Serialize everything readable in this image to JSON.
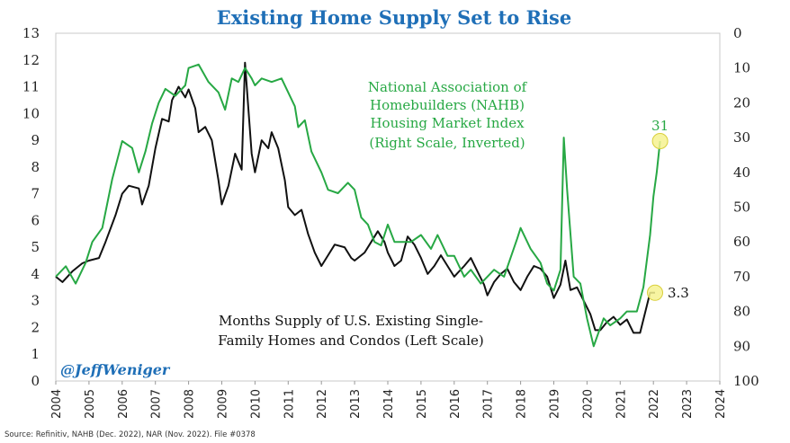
{
  "chart_data": {
    "type": "line",
    "title": "Existing Home Supply Set to Rise",
    "x_ticks": [
      "2004",
      "2005",
      "2006",
      "2007",
      "2008",
      "2009",
      "2010",
      "2011",
      "2012",
      "2013",
      "2014",
      "2015",
      "2016",
      "2017",
      "2018",
      "2019",
      "2020",
      "2021",
      "2022",
      "2023",
      "2024"
    ],
    "y_left": {
      "min": 0,
      "max": 13,
      "ticks": [
        "0",
        "1",
        "2",
        "3",
        "4",
        "5",
        "6",
        "7",
        "8",
        "9",
        "10",
        "11",
        "12",
        "13"
      ]
    },
    "y_right": {
      "min": 0,
      "max": 100,
      "inverted": true,
      "ticks": [
        "0",
        "10",
        "20",
        "30",
        "40",
        "50",
        "60",
        "70",
        "80",
        "90",
        "100"
      ]
    },
    "grid": false,
    "series": [
      {
        "name": "Months Supply of U.S. Existing Single-Family Homes and Condos (Left Scale)",
        "color": "#111111",
        "axis": "left",
        "end_label": "3.3",
        "points": [
          [
            2004.0,
            3.9
          ],
          [
            2004.2,
            3.7
          ],
          [
            2004.5,
            4.1
          ],
          [
            2004.8,
            4.4
          ],
          [
            2005.0,
            4.5
          ],
          [
            2005.3,
            4.6
          ],
          [
            2005.5,
            5.2
          ],
          [
            2005.8,
            6.2
          ],
          [
            2006.0,
            7.0
          ],
          [
            2006.2,
            7.3
          ],
          [
            2006.5,
            7.2
          ],
          [
            2006.6,
            6.6
          ],
          [
            2006.8,
            7.3
          ],
          [
            2007.0,
            8.7
          ],
          [
            2007.2,
            9.8
          ],
          [
            2007.4,
            9.7
          ],
          [
            2007.5,
            10.5
          ],
          [
            2007.7,
            11.0
          ],
          [
            2007.9,
            10.6
          ],
          [
            2008.0,
            10.9
          ],
          [
            2008.2,
            10.2
          ],
          [
            2008.3,
            9.3
          ],
          [
            2008.5,
            9.5
          ],
          [
            2008.7,
            9.0
          ],
          [
            2008.9,
            7.5
          ],
          [
            2009.0,
            6.6
          ],
          [
            2009.2,
            7.3
          ],
          [
            2009.4,
            8.5
          ],
          [
            2009.6,
            7.9
          ],
          [
            2009.7,
            11.9
          ],
          [
            2009.8,
            10.2
          ],
          [
            2009.9,
            8.5
          ],
          [
            2010.0,
            7.8
          ],
          [
            2010.2,
            9.0
          ],
          [
            2010.4,
            8.7
          ],
          [
            2010.5,
            9.3
          ],
          [
            2010.7,
            8.7
          ],
          [
            2010.9,
            7.5
          ],
          [
            2011.0,
            6.5
          ],
          [
            2011.2,
            6.2
          ],
          [
            2011.4,
            6.4
          ],
          [
            2011.6,
            5.5
          ],
          [
            2011.8,
            4.8
          ],
          [
            2012.0,
            4.3
          ],
          [
            2012.2,
            4.7
          ],
          [
            2012.4,
            5.1
          ],
          [
            2012.7,
            5.0
          ],
          [
            2012.9,
            4.6
          ],
          [
            2013.0,
            4.5
          ],
          [
            2013.3,
            4.8
          ],
          [
            2013.5,
            5.2
          ],
          [
            2013.7,
            5.6
          ],
          [
            2013.9,
            5.2
          ],
          [
            2014.0,
            4.8
          ],
          [
            2014.2,
            4.3
          ],
          [
            2014.4,
            4.5
          ],
          [
            2014.6,
            5.4
          ],
          [
            2014.8,
            5.1
          ],
          [
            2015.0,
            4.6
          ],
          [
            2015.2,
            4.0
          ],
          [
            2015.4,
            4.3
          ],
          [
            2015.6,
            4.7
          ],
          [
            2015.8,
            4.3
          ],
          [
            2016.0,
            3.9
          ],
          [
            2016.3,
            4.3
          ],
          [
            2016.5,
            4.6
          ],
          [
            2016.7,
            4.1
          ],
          [
            2016.9,
            3.6
          ],
          [
            2017.0,
            3.2
          ],
          [
            2017.2,
            3.7
          ],
          [
            2017.4,
            4.0
          ],
          [
            2017.6,
            4.2
          ],
          [
            2017.8,
            3.7
          ],
          [
            2018.0,
            3.4
          ],
          [
            2018.2,
            3.9
          ],
          [
            2018.4,
            4.3
          ],
          [
            2018.6,
            4.2
          ],
          [
            2018.8,
            3.9
          ],
          [
            2019.0,
            3.1
          ],
          [
            2019.2,
            3.6
          ],
          [
            2019.35,
            4.5
          ],
          [
            2019.5,
            3.4
          ],
          [
            2019.7,
            3.5
          ],
          [
            2019.9,
            3.0
          ],
          [
            2020.1,
            2.5
          ],
          [
            2020.25,
            1.9
          ],
          [
            2020.4,
            1.9
          ],
          [
            2020.6,
            2.2
          ],
          [
            2020.8,
            2.4
          ],
          [
            2021.0,
            2.1
          ],
          [
            2021.2,
            2.3
          ],
          [
            2021.4,
            1.8
          ],
          [
            2021.6,
            1.8
          ],
          [
            2021.8,
            2.8
          ],
          [
            2021.9,
            3.3
          ],
          [
            2022.05,
            3.3
          ]
        ]
      },
      {
        "name": "National Association of Homebuilders (NAHB) Housing Market Index (Right Scale, Inverted)",
        "color": "#27a844",
        "axis": "right",
        "end_label": "31",
        "points": [
          [
            2004.0,
            70
          ],
          [
            2004.3,
            67
          ],
          [
            2004.6,
            72
          ],
          [
            2004.9,
            66
          ],
          [
            2005.1,
            60
          ],
          [
            2005.4,
            56
          ],
          [
            2005.7,
            42
          ],
          [
            2006.0,
            31
          ],
          [
            2006.3,
            33
          ],
          [
            2006.5,
            40
          ],
          [
            2006.7,
            34
          ],
          [
            2006.9,
            26
          ],
          [
            2007.1,
            20
          ],
          [
            2007.3,
            16
          ],
          [
            2007.6,
            18
          ],
          [
            2007.9,
            15
          ],
          [
            2008.0,
            10
          ],
          [
            2008.3,
            9
          ],
          [
            2008.6,
            14
          ],
          [
            2008.9,
            17
          ],
          [
            2009.1,
            22
          ],
          [
            2009.3,
            13
          ],
          [
            2009.5,
            14
          ],
          [
            2009.7,
            10
          ],
          [
            2009.9,
            13
          ],
          [
            2010.0,
            15
          ],
          [
            2010.2,
            13
          ],
          [
            2010.5,
            14
          ],
          [
            2010.8,
            13
          ],
          [
            2011.0,
            17
          ],
          [
            2011.2,
            21
          ],
          [
            2011.3,
            27
          ],
          [
            2011.5,
            25
          ],
          [
            2011.7,
            34
          ],
          [
            2012.0,
            40
          ],
          [
            2012.2,
            45
          ],
          [
            2012.5,
            46
          ],
          [
            2012.8,
            43
          ],
          [
            2013.0,
            45
          ],
          [
            2013.2,
            53
          ],
          [
            2013.4,
            55
          ],
          [
            2013.6,
            60
          ],
          [
            2013.8,
            61
          ],
          [
            2014.0,
            55
          ],
          [
            2014.2,
            60
          ],
          [
            2014.5,
            60
          ],
          [
            2014.7,
            60
          ],
          [
            2015.0,
            58
          ],
          [
            2015.3,
            62
          ],
          [
            2015.5,
            58
          ],
          [
            2015.8,
            64
          ],
          [
            2016.0,
            64
          ],
          [
            2016.3,
            70
          ],
          [
            2016.5,
            68
          ],
          [
            2016.8,
            72
          ],
          [
            2017.0,
            70
          ],
          [
            2017.2,
            68
          ],
          [
            2017.5,
            70
          ],
          [
            2017.9,
            59
          ],
          [
            2018.0,
            56
          ],
          [
            2018.3,
            62
          ],
          [
            2018.6,
            66
          ],
          [
            2018.8,
            72
          ],
          [
            2019.0,
            74
          ],
          [
            2019.2,
            68
          ],
          [
            2019.3,
            30
          ],
          [
            2019.4,
            45
          ],
          [
            2019.6,
            70
          ],
          [
            2019.8,
            72
          ],
          [
            2020.0,
            82
          ],
          [
            2020.2,
            90
          ],
          [
            2020.35,
            86
          ],
          [
            2020.5,
            82
          ],
          [
            2020.7,
            84
          ],
          [
            2021.0,
            82
          ],
          [
            2021.2,
            80
          ],
          [
            2021.5,
            80
          ],
          [
            2021.7,
            73
          ],
          [
            2021.9,
            58
          ],
          [
            2022.0,
            47
          ],
          [
            2022.1,
            40
          ],
          [
            2022.2,
            31
          ]
        ]
      }
    ]
  },
  "annotations": {
    "green": [
      "National Association of",
      "Homebuilders (NAHB)",
      "Housing Market Index",
      "(Right Scale, Inverted)"
    ],
    "black": [
      "Months Supply of U.S. Existing Single-",
      "Family Homes and Condos (Left Scale)"
    ],
    "handle": "@JeffWeniger",
    "source": "Source: Refinitiv, NAHB (Dec. 2022), NAR (Nov. 2022). File #0378"
  }
}
